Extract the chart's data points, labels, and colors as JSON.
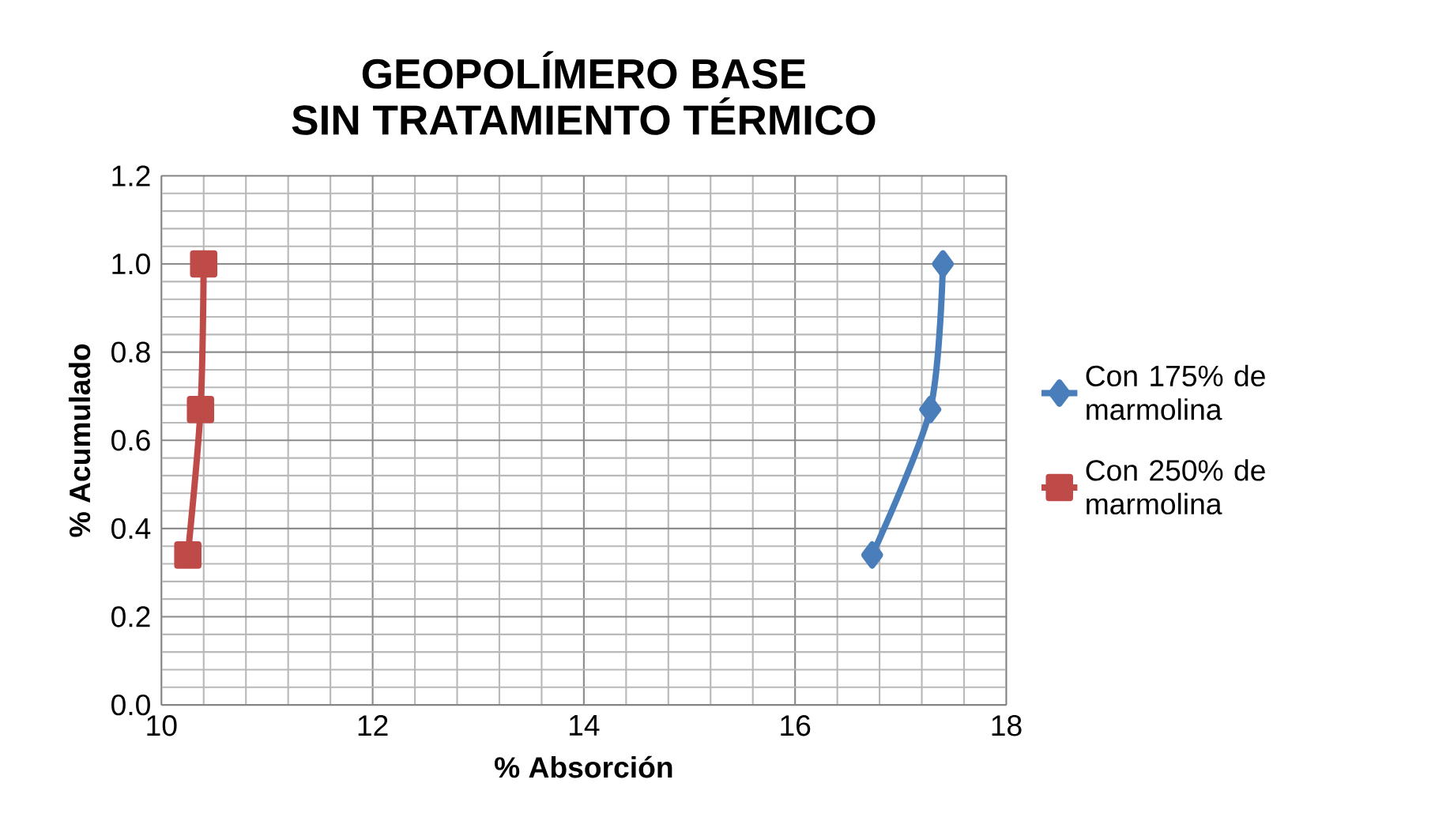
{
  "chart_data": {
    "type": "line",
    "title": "GEOPOLÍMERO BASE\nSIN TRATAMIENTO TÉRMICO",
    "xlabel": "% Absorción",
    "ylabel": "% Acumulado",
    "series": [
      {
        "name": "Con 175% de marmolina",
        "color": "#4a7ebb",
        "x": [
          16.73,
          17.28,
          17.4
        ],
        "values": [
          0.34,
          0.67,
          1.0
        ],
        "marker": "diamond"
      },
      {
        "name": "Con 250% de marmolina",
        "color": "#be4b48",
        "x": [
          10.25,
          10.37,
          10.4
        ],
        "values": [
          0.34,
          0.67,
          1.0
        ],
        "marker": "square"
      }
    ],
    "xlim": [
      10,
      18
    ],
    "xticks": [
      10,
      12,
      14,
      16,
      18
    ],
    "ylim": [
      0,
      1.2
    ],
    "yticks": [
      {
        "value": 0,
        "label": "0.0"
      },
      {
        "value": 0.2,
        "label": "0.2"
      },
      {
        "value": 0.4,
        "label": "0.4"
      },
      {
        "value": 0.6,
        "label": "0.6"
      },
      {
        "value": 0.8,
        "label": "0.8"
      },
      {
        "value": 1.0,
        "label": "1.0"
      },
      {
        "value": 1.2,
        "label": "1.2"
      }
    ],
    "grid": true,
    "legend": "right",
    "line_style": "solid"
  }
}
